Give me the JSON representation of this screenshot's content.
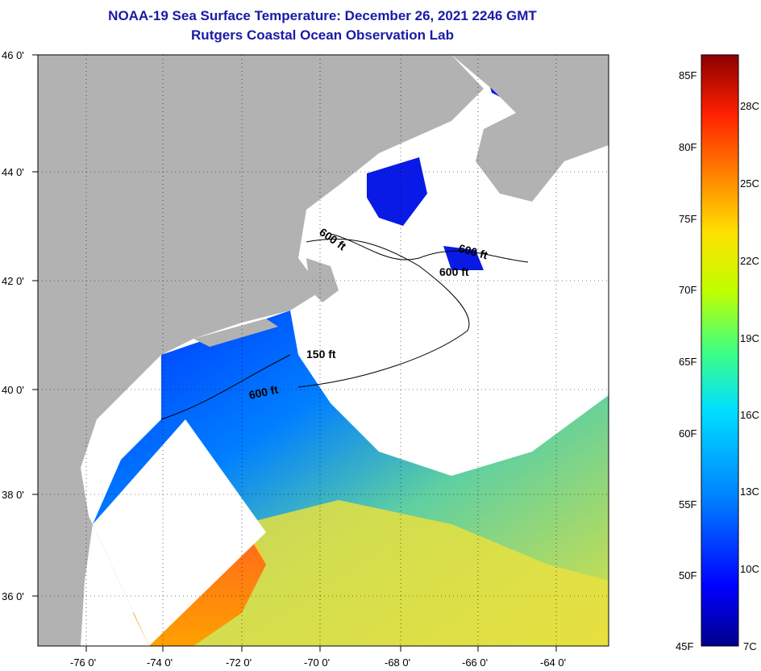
{
  "title": {
    "line1": "NOAA-19 Sea Surface Temperature:  December 26, 2021 2246 GMT",
    "line2": "Rutgers Coastal Ocean Observation Lab"
  },
  "map": {
    "lat_labels": [
      "46 0'",
      "44 0'",
      "42 0'",
      "40 0'",
      "38 0'",
      "36 0'"
    ],
    "lon_labels": [
      "-76 0'",
      "-74 0'",
      "-72 0'",
      "-70 0'",
      "-68 0'",
      "-66 0'",
      "-64 0'"
    ],
    "contour_labels": [
      "600 ft",
      "600 ft",
      "600 ft",
      "150 ft",
      "600 ft"
    ],
    "colors": {
      "land": "#b2b2b2",
      "cloud": "#ffffff",
      "gridline": "#000000"
    }
  },
  "colorbar": {
    "fahrenheit_labels": [
      "85F",
      "80F",
      "75F",
      "70F",
      "65F",
      "60F",
      "55F",
      "50F",
      "45F"
    ],
    "celsius_labels": [
      "28C",
      "25C",
      "22C",
      "19C",
      "16C",
      "13C",
      "10C",
      "7C"
    ],
    "stops": [
      "#00008b",
      "#0000ff",
      "#0080ff",
      "#00e0ff",
      "#40ff80",
      "#c0ff00",
      "#ffe000",
      "#ff8000",
      "#ff2000",
      "#8b0000"
    ]
  }
}
